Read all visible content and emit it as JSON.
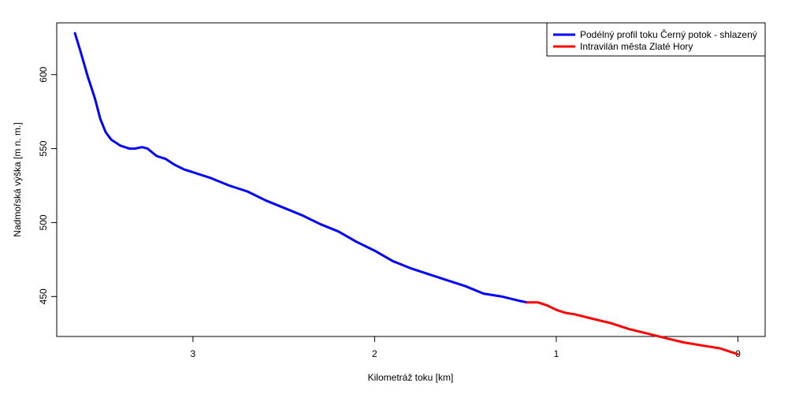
{
  "chart_data": {
    "type": "line",
    "xlabel": "Kilometráž toku [km]",
    "ylabel": "Nadmořská výška [m n. m.]",
    "xlim": [
      3.75,
      -0.15
    ],
    "ylim": [
      423,
      635
    ],
    "x_reversed": true,
    "x_ticks": [
      3,
      2,
      1,
      0
    ],
    "y_ticks": [
      450,
      500,
      550,
      600
    ],
    "grid": false,
    "legend_position": "top-right",
    "series": [
      {
        "name": "Podélný profil toku Černý potok - shlazený",
        "color": "#0000FF",
        "points": [
          [
            3.65,
            628
          ],
          [
            3.62,
            616
          ],
          [
            3.58,
            599
          ],
          [
            3.54,
            584
          ],
          [
            3.51,
            570
          ],
          [
            3.48,
            561
          ],
          [
            3.45,
            556
          ],
          [
            3.4,
            552
          ],
          [
            3.35,
            550
          ],
          [
            3.32,
            550
          ],
          [
            3.28,
            551
          ],
          [
            3.25,
            550
          ],
          [
            3.2,
            545
          ],
          [
            3.15,
            543
          ],
          [
            3.1,
            539
          ],
          [
            3.05,
            536
          ],
          [
            3.0,
            534
          ],
          [
            2.9,
            530
          ],
          [
            2.8,
            525
          ],
          [
            2.7,
            521
          ],
          [
            2.6,
            515
          ],
          [
            2.5,
            510
          ],
          [
            2.4,
            505
          ],
          [
            2.3,
            499
          ],
          [
            2.2,
            494
          ],
          [
            2.1,
            487
          ],
          [
            2.0,
            481
          ],
          [
            1.9,
            474
          ],
          [
            1.8,
            469
          ],
          [
            1.7,
            465
          ],
          [
            1.6,
            461
          ],
          [
            1.5,
            457
          ],
          [
            1.4,
            452
          ],
          [
            1.3,
            450
          ],
          [
            1.2,
            447
          ],
          [
            1.16,
            446
          ]
        ]
      },
      {
        "name": "Intravilán města Zlaté Hory",
        "color": "#FF0000",
        "points": [
          [
            1.16,
            446
          ],
          [
            1.1,
            446
          ],
          [
            1.05,
            444
          ],
          [
            1.0,
            441
          ],
          [
            0.95,
            439
          ],
          [
            0.9,
            438
          ],
          [
            0.8,
            435
          ],
          [
            0.7,
            432
          ],
          [
            0.6,
            428
          ],
          [
            0.5,
            425
          ],
          [
            0.4,
            422
          ],
          [
            0.3,
            419
          ],
          [
            0.2,
            417
          ],
          [
            0.1,
            415
          ],
          [
            0.05,
            413
          ],
          [
            0.0,
            411
          ]
        ]
      }
    ]
  }
}
